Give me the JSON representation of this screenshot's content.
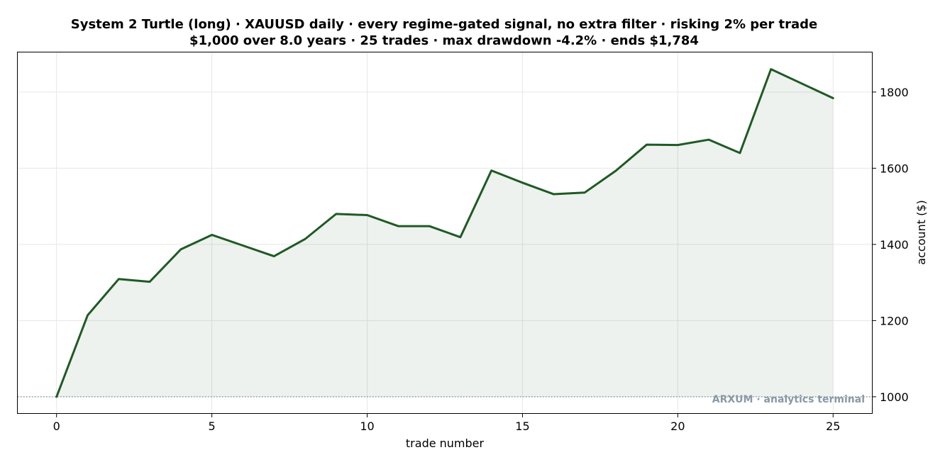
{
  "chart_data": {
    "type": "area",
    "title": "System 2 Turtle (long) · XAUUSD daily · every regime-gated signal, no extra filter · risking 2% per trade",
    "subtitle": "$1,000 over 8.0 years · 25 trades · max drawdown -4.2% · ends $1,784",
    "xlabel": "trade number",
    "ylabel": "account ($)",
    "xlim": [
      -1.25,
      26.25
    ],
    "ylim": [
      957,
      1904
    ],
    "x_ticks": [
      0,
      5,
      10,
      15,
      20,
      25
    ],
    "y_ticks": [
      1000,
      1200,
      1400,
      1600,
      1800
    ],
    "y_axis_side": "right",
    "grid": true,
    "baseline": 1000,
    "series": [
      {
        "x": [
          0,
          1,
          2,
          3,
          4,
          5,
          6,
          7,
          8,
          9,
          10,
          11,
          12,
          13,
          14,
          15,
          16,
          17,
          18,
          19,
          20,
          21,
          22,
          23,
          24,
          25
        ],
        "values": [
          1000,
          1214,
          1309,
          1302,
          1387,
          1425,
          1397,
          1369,
          1414,
          1480,
          1477,
          1448,
          1448,
          1419,
          1594,
          1562,
          1532,
          1536,
          1593,
          1662,
          1661,
          1675,
          1640,
          1860,
          1822,
          1784
        ]
      }
    ],
    "watermark": "ARXUM · analytics terminal"
  },
  "colors": {
    "line": "#1f5a24",
    "fill": "#1f5a24",
    "baseline": "#7a8e99",
    "watermark": "#8899a6",
    "grid": "#e6e6e6",
    "axis": "#000000"
  }
}
